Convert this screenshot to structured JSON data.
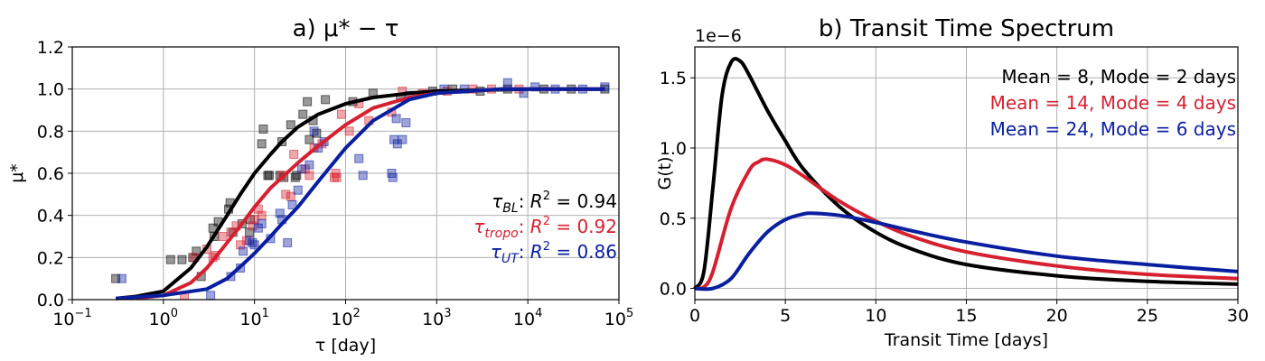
{
  "colors": {
    "black": "#000000",
    "red": "#d62030",
    "blue": "#0a1fa0",
    "grid": "#b0b0b0"
  },
  "chart_data": [
    {
      "type": "scatter",
      "title": "a) μ* − τ",
      "xlabel": "τ [day]",
      "ylabel": "μ*",
      "xscale": "log",
      "xlim": [
        0.1,
        100000
      ],
      "ylim": [
        0.0,
        1.2
      ],
      "xticks": [
        0.1,
        1,
        10,
        100,
        1000,
        10000,
        100000
      ],
      "xtick_labels": [
        {
          "base": "10",
          "exp": "−1"
        },
        {
          "base": "10",
          "exp": "0"
        },
        {
          "base": "10",
          "exp": "1"
        },
        {
          "base": "10",
          "exp": "2"
        },
        {
          "base": "10",
          "exp": "3"
        },
        {
          "base": "10",
          "exp": "4"
        },
        {
          "base": "10",
          "exp": "5"
        }
      ],
      "yticks": [
        0.0,
        0.2,
        0.4,
        0.6,
        0.8,
        1.0,
        1.2
      ],
      "ytick_labels": [
        "0.0",
        "0.2",
        "0.4",
        "0.6",
        "0.8",
        "1.0",
        "1.2"
      ],
      "grid": true,
      "annotations": [
        {
          "sym": "τ",
          "sub": "BL",
          "rest": ": R",
          "sup": "2",
          "val": " = 0.94",
          "color": "#000000"
        },
        {
          "sym": "τ",
          "sub": "tropo",
          "rest": ": R",
          "sup": "2",
          "val": " = 0.92",
          "color": "#d62030"
        },
        {
          "sym": "τ",
          "sub": "UT",
          "rest": ": R",
          "sup": "2",
          "val": " = 0.86",
          "color": "#0a1fa0"
        }
      ],
      "series": [
        {
          "color": "#000000",
          "curve": [
            [
              0.3,
              0.005
            ],
            [
              0.5,
              0.015
            ],
            [
              1.0,
              0.04
            ],
            [
              2,
              0.15
            ],
            [
              3,
              0.25
            ],
            [
              5,
              0.4
            ],
            [
              7,
              0.5
            ],
            [
              10,
              0.6
            ],
            [
              15,
              0.69
            ],
            [
              20,
              0.75
            ],
            [
              30,
              0.82
            ],
            [
              50,
              0.88
            ],
            [
              100,
              0.93
            ],
            [
              200,
              0.96
            ],
            [
              500,
              0.98
            ],
            [
              1000,
              0.99
            ],
            [
              10000,
              1.0
            ],
            [
              70000,
              1.0
            ]
          ],
          "points": [
            [
              0.3,
              0.1
            ],
            [
              1.2,
              0.19
            ],
            [
              1.6,
              0.19
            ],
            [
              2.1,
              0.2
            ],
            [
              2.3,
              0.23
            ],
            [
              2.6,
              0.11
            ],
            [
              3.5,
              0.34
            ],
            [
              3.6,
              0.3
            ],
            [
              4.0,
              0.37
            ],
            [
              5.2,
              0.43
            ],
            [
              5.4,
              0.46
            ],
            [
              5.8,
              0.32
            ],
            [
              7.3,
              0.36
            ],
            [
              8.8,
              0.32
            ],
            [
              9.0,
              0.38
            ],
            [
              12,
              0.74
            ],
            [
              12.5,
              0.81
            ],
            [
              14,
              0.59
            ],
            [
              14.5,
              0.59
            ],
            [
              19,
              0.59
            ],
            [
              20,
              0.75
            ],
            [
              21,
              0.58
            ],
            [
              25,
              0.83
            ],
            [
              28,
              0.58
            ],
            [
              29,
              0.59
            ],
            [
              34,
              0.88
            ],
            [
              38,
              0.94
            ],
            [
              40,
              0.76
            ],
            [
              44,
              0.85
            ],
            [
              48,
              0.79
            ],
            [
              60,
              0.95
            ],
            [
              120,
              0.94
            ],
            [
              200,
              0.98
            ],
            [
              400,
              0.96
            ],
            [
              900,
              0.99
            ],
            [
              1500,
              1.0
            ],
            [
              3000,
              0.99
            ],
            [
              6000,
              1.0
            ],
            [
              15000,
              1.0
            ],
            [
              30000,
              1.0
            ],
            [
              70000,
              1.0
            ]
          ]
        },
        {
          "color": "#d62030",
          "curve": [
            [
              0.5,
              0.005
            ],
            [
              1.0,
              0.02
            ],
            [
              2,
              0.08
            ],
            [
              3,
              0.15
            ],
            [
              5,
              0.27
            ],
            [
              7,
              0.35
            ],
            [
              10,
              0.44
            ],
            [
              15,
              0.53
            ],
            [
              20,
              0.58
            ],
            [
              30,
              0.65
            ],
            [
              50,
              0.73
            ],
            [
              100,
              0.83
            ],
            [
              200,
              0.91
            ],
            [
              500,
              0.96
            ],
            [
              1000,
              0.98
            ],
            [
              5000,
              1.0
            ],
            [
              70000,
              1.0
            ]
          ],
          "points": [
            [
              1.7,
              0.02
            ],
            [
              2.2,
              0.2
            ],
            [
              3.0,
              0.24
            ],
            [
              3.5,
              0.2
            ],
            [
              3.7,
              0.21
            ],
            [
              4.5,
              0.3
            ],
            [
              5.5,
              0.32
            ],
            [
              6.3,
              0.35
            ],
            [
              7.0,
              0.26
            ],
            [
              8.2,
              0.28
            ],
            [
              9.5,
              0.35
            ],
            [
              10,
              0.38
            ],
            [
              11,
              0.43
            ],
            [
              12,
              0.4
            ],
            [
              20,
              0.59
            ],
            [
              22,
              0.5
            ],
            [
              25,
              0.49
            ],
            [
              27,
              0.69
            ],
            [
              36,
              0.62
            ],
            [
              40,
              0.59
            ],
            [
              45,
              0.72
            ],
            [
              55,
              0.74
            ],
            [
              75,
              0.58
            ],
            [
              78,
              0.6
            ],
            [
              80,
              0.58
            ],
            [
              90,
              0.88
            ],
            [
              110,
              0.8
            ],
            [
              140,
              0.93
            ],
            [
              180,
              0.85
            ],
            [
              320,
              0.89
            ],
            [
              420,
              0.99
            ],
            [
              700,
              0.98
            ],
            [
              1300,
              0.99
            ],
            [
              2500,
              1.0
            ],
            [
              4000,
              1.0
            ],
            [
              8000,
              1.0
            ]
          ]
        },
        {
          "color": "#0a1fa0",
          "curve": [
            [
              0.3,
              0.005
            ],
            [
              1.0,
              0.02
            ],
            [
              3,
              0.05
            ],
            [
              5,
              0.1
            ],
            [
              8,
              0.18
            ],
            [
              10,
              0.22
            ],
            [
              15,
              0.3
            ],
            [
              20,
              0.36
            ],
            [
              30,
              0.44
            ],
            [
              50,
              0.56
            ],
            [
              100,
              0.72
            ],
            [
              200,
              0.85
            ],
            [
              500,
              0.95
            ],
            [
              1000,
              0.98
            ],
            [
              5000,
              1.0
            ],
            [
              70000,
              1.0
            ]
          ],
          "points": [
            [
              0.35,
              0.1
            ],
            [
              3.3,
              0.02
            ],
            [
              5.5,
              0.11
            ],
            [
              7.0,
              0.15
            ],
            [
              7.5,
              0.23
            ],
            [
              8.8,
              0.28
            ],
            [
              9.5,
              0.27
            ],
            [
              10,
              0.26
            ],
            [
              11,
              0.34
            ],
            [
              12,
              0.36
            ],
            [
              15,
              0.29
            ],
            [
              19,
              0.41
            ],
            [
              20,
              0.38
            ],
            [
              23,
              0.27
            ],
            [
              26,
              0.45
            ],
            [
              30,
              0.52
            ],
            [
              33,
              0.62
            ],
            [
              40,
              0.64
            ],
            [
              45,
              0.8
            ],
            [
              50,
              0.72
            ],
            [
              58,
              0.75
            ],
            [
              140,
              0.67
            ],
            [
              155,
              0.59
            ],
            [
              320,
              0.6
            ],
            [
              330,
              0.58
            ],
            [
              340,
              0.76
            ],
            [
              360,
              0.86
            ],
            [
              370,
              0.74
            ],
            [
              420,
              0.76
            ],
            [
              460,
              0.84
            ],
            [
              500,
              0.97
            ],
            [
              1200,
              1.0
            ],
            [
              2000,
              1.0
            ],
            [
              6000,
              1.03
            ],
            [
              9000,
              0.98
            ],
            [
              12000,
              1.01
            ],
            [
              20000,
              1.0
            ],
            [
              40000,
              1.0
            ],
            [
              70000,
              1.01
            ]
          ]
        }
      ]
    },
    {
      "type": "line",
      "title": "b) Transit Time Spectrum",
      "xlabel": "Transit Time [days]",
      "ylabel": "G(t)",
      "offset_text": "1e−6",
      "xlim": [
        0,
        30
      ],
      "ylim": [
        -0.08,
        1.72
      ],
      "xticks": [
        0,
        5,
        10,
        15,
        20,
        25,
        30
      ],
      "xtick_labels": [
        "0",
        "5",
        "10",
        "15",
        "20",
        "25",
        "30"
      ],
      "yticks": [
        0.0,
        0.5,
        1.0,
        1.5
      ],
      "ytick_labels": [
        "0.0",
        "0.5",
        "1.0",
        "1.5"
      ],
      "grid": true,
      "series": [
        {
          "name": "Mean = 8, Mode = 2 days",
          "color": "#000000",
          "mean": 8,
          "mode": 2,
          "points": [
            [
              0,
              0
            ],
            [
              0.5,
              0.12
            ],
            [
              1,
              0.72
            ],
            [
              1.5,
              1.37
            ],
            [
              2,
              1.61
            ],
            [
              2.5,
              1.62
            ],
            [
              3,
              1.52
            ],
            [
              4,
              1.27
            ],
            [
              5,
              1.05
            ],
            [
              6,
              0.85
            ],
            [
              8,
              0.58
            ],
            [
              10,
              0.4
            ],
            [
              12,
              0.28
            ],
            [
              15,
              0.17
            ],
            [
              20,
              0.09
            ],
            [
              25,
              0.05
            ],
            [
              30,
              0.03
            ]
          ]
        },
        {
          "name": "Mean = 14, Mode = 4 days",
          "color": "#d62030",
          "mean": 14,
          "mode": 4,
          "points": [
            [
              0,
              0
            ],
            [
              0.5,
              0.01
            ],
            [
              1,
              0.12
            ],
            [
              2,
              0.57
            ],
            [
              3,
              0.84
            ],
            [
              3.5,
              0.9
            ],
            [
              4,
              0.92
            ],
            [
              5,
              0.88
            ],
            [
              6,
              0.8
            ],
            [
              8,
              0.62
            ],
            [
              10,
              0.48
            ],
            [
              12,
              0.37
            ],
            [
              15,
              0.26
            ],
            [
              20,
              0.16
            ],
            [
              25,
              0.1
            ],
            [
              30,
              0.07
            ]
          ]
        },
        {
          "name": "Mean = 24, Mode = 6 days",
          "color": "#0a1fa0",
          "mean": 24,
          "mode": 6,
          "points": [
            [
              0,
              0
            ],
            [
              1,
              0.0
            ],
            [
              2,
              0.07
            ],
            [
              3,
              0.25
            ],
            [
              4,
              0.4
            ],
            [
              5,
              0.49
            ],
            [
              6,
              0.53
            ],
            [
              6.5,
              0.535
            ],
            [
              8,
              0.52
            ],
            [
              10,
              0.47
            ],
            [
              12,
              0.41
            ],
            [
              15,
              0.33
            ],
            [
              20,
              0.23
            ],
            [
              25,
              0.17
            ],
            [
              30,
              0.12
            ]
          ]
        }
      ]
    }
  ]
}
